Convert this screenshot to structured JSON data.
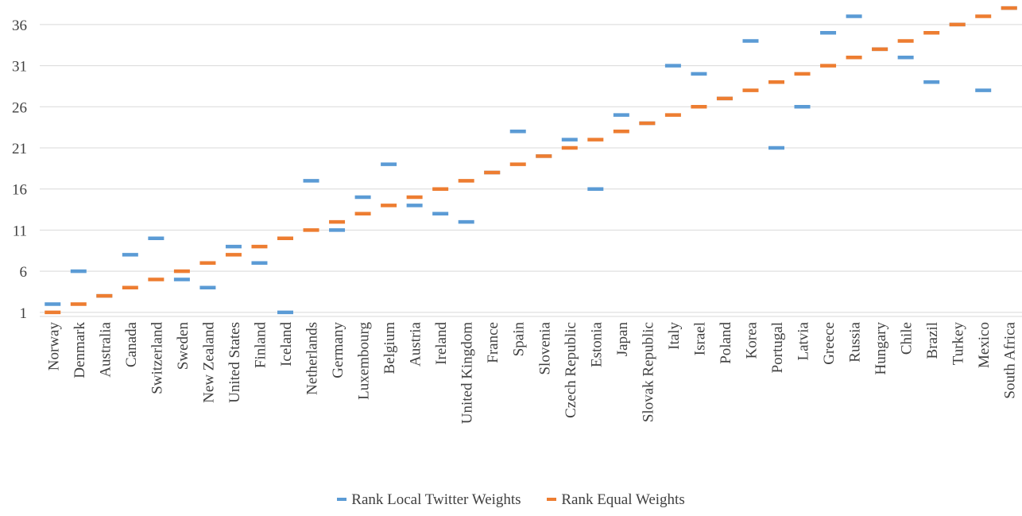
{
  "chart_data": {
    "type": "scatter",
    "categories": [
      "Norway",
      "Denmark",
      "Australia",
      "Canada",
      "Switzerland",
      "Sweden",
      "New Zealand",
      "United States",
      "Finland",
      "Iceland",
      "Netherlands",
      "Germany",
      "Luxembourg",
      "Belgium",
      "Austria",
      "Ireland",
      "United Kingdom",
      "France",
      "Spain",
      "Slovenia",
      "Czech Republic",
      "Estonia",
      "Japan",
      "Slovak Republic",
      "Italy",
      "Israel",
      "Poland",
      "Korea",
      "Portugal",
      "Latvia",
      "Greece",
      "Russia",
      "Hungary",
      "Chile",
      "Brazil",
      "Turkey",
      "Mexico",
      "South Africa"
    ],
    "series": [
      {
        "name": "Rank Local Twitter Weights",
        "color": "#5B9BD5",
        "values": [
          2,
          6,
          3,
          8,
          10,
          5,
          4,
          9,
          7,
          1,
          17,
          11,
          15,
          19,
          14,
          13,
          12,
          18,
          23,
          20,
          22,
          16,
          25,
          24,
          31,
          30,
          27,
          34,
          21,
          26,
          35,
          37,
          33,
          32,
          29,
          36,
          28,
          38
        ]
      },
      {
        "name": "Rank Equal Weights",
        "color": "#ED7D31",
        "values": [
          1,
          2,
          3,
          4,
          5,
          6,
          7,
          8,
          9,
          10,
          11,
          12,
          13,
          14,
          15,
          16,
          17,
          18,
          19,
          20,
          21,
          22,
          23,
          24,
          25,
          26,
          27,
          28,
          29,
          30,
          31,
          32,
          33,
          34,
          35,
          36,
          37,
          38
        ]
      }
    ],
    "y_ticks": [
      "1",
      "6",
      "11",
      "16",
      "21",
      "26",
      "31",
      "36"
    ],
    "ylim": [
      0.5,
      38.5
    ],
    "grid": true,
    "legend_position": "bottom"
  }
}
